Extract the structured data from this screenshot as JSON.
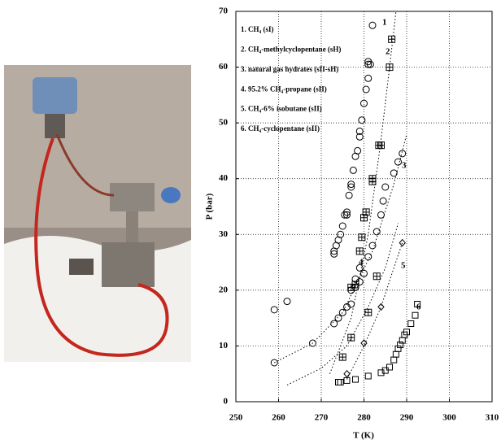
{
  "chart_data": {
    "type": "scatter",
    "xlabel": "T (K)",
    "ylabel": "P (bar)",
    "xlim": [
      250,
      310
    ],
    "ylim": [
      0,
      70
    ],
    "xticks": [
      250,
      260,
      270,
      280,
      290,
      300,
      310
    ],
    "yticks": [
      0,
      10,
      20,
      30,
      40,
      50,
      60,
      70
    ],
    "grid": true,
    "series": [
      {
        "name": "1. CH₄ (sI)",
        "label": "1",
        "marker": "circle",
        "color": "#000000",
        "x": [
          273,
          273,
          273.5,
          274,
          274.5,
          275,
          275.5,
          276,
          276,
          276.5,
          277,
          277,
          277.5,
          278,
          278.5,
          279,
          279,
          279.5,
          280,
          280.5,
          281,
          281,
          281,
          281.5,
          282
        ],
        "y": [
          26.5,
          27,
          28,
          29,
          30,
          31.5,
          33.5,
          34,
          33.5,
          37,
          38.5,
          39,
          41.5,
          44,
          45,
          47.5,
          48.5,
          50.5,
          53.5,
          56,
          58,
          60.5,
          61,
          60.5,
          67.5
        ]
      },
      {
        "name": "2. CH₄-methylcyclopentane (sH)",
        "label": "2",
        "marker": "square-plus",
        "color": "#000000",
        "x": [
          275,
          277,
          277,
          278,
          279,
          279.5,
          280,
          280.5,
          281,
          282,
          282,
          283,
          283.5,
          284,
          286,
          286.5
        ],
        "y": [
          8,
          11.5,
          20.5,
          21,
          27,
          29.5,
          33,
          34,
          16,
          40,
          39.5,
          22.5,
          46,
          46,
          60,
          65
        ],
        "fit_x": [
          272,
          277,
          281,
          284,
          286,
          287.5
        ],
        "fit_y": [
          5,
          15,
          30,
          47,
          60,
          70
        ]
      },
      {
        "name": "3. natural gas hydrates (sII-sH)",
        "label": "3",
        "marker": "circle",
        "color": "#000000",
        "x": [
          259,
          268,
          273,
          274,
          275,
          276,
          277,
          278,
          279,
          281,
          282,
          283,
          284,
          284.5,
          285,
          287,
          288,
          289
        ],
        "y": [
          7,
          10.5,
          14,
          15,
          16,
          17,
          20,
          22,
          24,
          26,
          28,
          30.5,
          33.5,
          36,
          38.5,
          41,
          43,
          44.5
        ],
        "fit_x": [
          259,
          268,
          275,
          282,
          287,
          290
        ],
        "fit_y": [
          7,
          10.5,
          16,
          27,
          39,
          48
        ]
      },
      {
        "name": "4. 95.2% CH₄-propane (sII)",
        "label": "4",
        "marker": "circle",
        "color": "#000000",
        "x": [
          259,
          262,
          277,
          278,
          279,
          280
        ],
        "y": [
          16.5,
          18,
          17.5,
          20.5,
          21.5,
          23
        ],
        "fit_x": [
          262,
          270,
          276,
          281,
          285,
          288
        ],
        "fit_y": [
          3,
          6,
          10,
          17,
          24,
          32
        ]
      },
      {
        "name": "5. CH₄-6% isobutane (sII)",
        "label": "5",
        "marker": "diamond",
        "color": "#000000",
        "x": [
          276,
          280,
          284,
          289
        ],
        "y": [
          5,
          10.5,
          17,
          28.5
        ],
        "fit_x": [
          276,
          280,
          284,
          287,
          289
        ],
        "fit_y": [
          4,
          10,
          17,
          24,
          28.5
        ]
      },
      {
        "name": "6. CH₄-cyclopentane (sII)",
        "label": "6",
        "marker": "square",
        "color": "#000000",
        "x": [
          274,
          274.5,
          276,
          278,
          281,
          284,
          285,
          286,
          287,
          287.5,
          288,
          288.5,
          289,
          289.5,
          290,
          291,
          292,
          292.5
        ],
        "y": [
          3.5,
          3.5,
          3.8,
          4,
          4.6,
          5.2,
          5.6,
          6.2,
          7.5,
          8.5,
          9.5,
          10.2,
          11,
          12,
          12.5,
          14,
          15.5,
          17.5
        ]
      }
    ]
  }
}
